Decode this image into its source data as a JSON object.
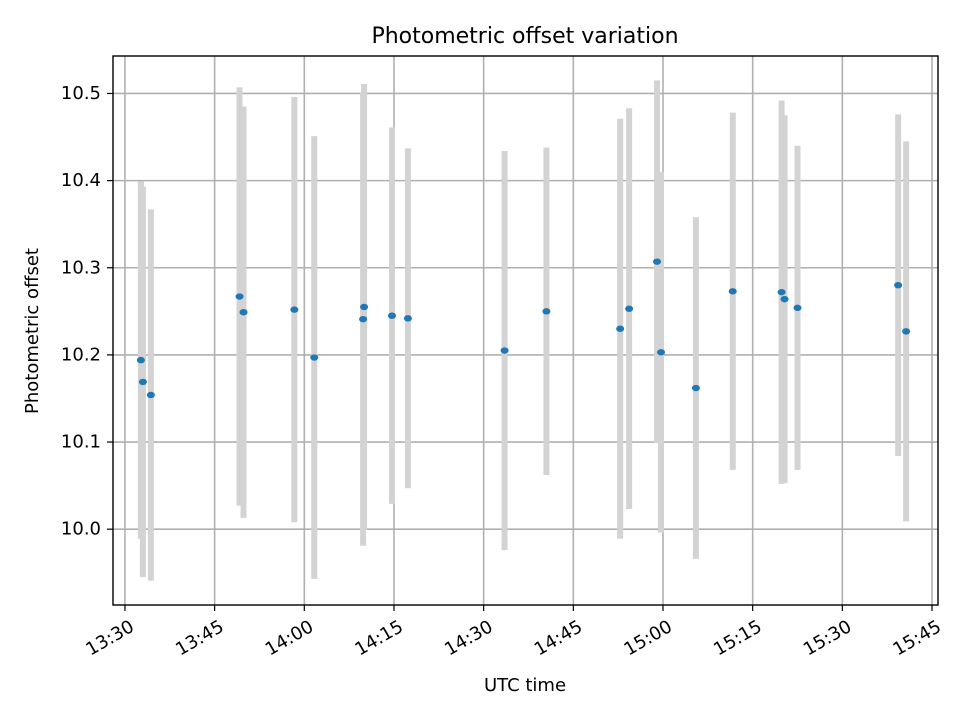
{
  "chart_data": {
    "type": "scatter",
    "title": "Photometric offset variation",
    "xlabel": "UTC time",
    "ylabel": "Photometric offset",
    "x_unit": "UTC HH:MM",
    "xlim": [
      "13:28",
      "15:46"
    ],
    "ylim": [
      9.913,
      10.543
    ],
    "x_ticks": [
      "13:30",
      "13:45",
      "14:00",
      "14:15",
      "14:30",
      "14:45",
      "15:00",
      "15:15",
      "15:30",
      "15:45"
    ],
    "y_ticks": [
      10.0,
      10.1,
      10.2,
      10.3,
      10.4,
      10.5
    ],
    "grid": true,
    "marker_color": "#1f77b4",
    "errorbar_color": "#d3d3d3",
    "points": [
      {
        "t": "13:32:40",
        "y": 10.194,
        "err": 0.205
      },
      {
        "t": "13:33:00",
        "y": 10.169,
        "err": 0.224
      },
      {
        "t": "13:34:20",
        "y": 10.154,
        "err": 0.213
      },
      {
        "t": "13:49:10",
        "y": 10.267,
        "err": 0.24
      },
      {
        "t": "13:49:50",
        "y": 10.249,
        "err": 0.236
      },
      {
        "t": "13:58:20",
        "y": 10.252,
        "err": 0.244
      },
      {
        "t": "14:01:40",
        "y": 10.197,
        "err": 0.254
      },
      {
        "t": "14:09:50",
        "y": 10.241,
        "err": 0.26
      },
      {
        "t": "14:10:00",
        "y": 10.255,
        "err": 0.256
      },
      {
        "t": "14:14:40",
        "y": 10.245,
        "err": 0.216
      },
      {
        "t": "14:17:20",
        "y": 10.242,
        "err": 0.195
      },
      {
        "t": "14:33:30",
        "y": 10.205,
        "err": 0.229
      },
      {
        "t": "14:40:30",
        "y": 10.25,
        "err": 0.188
      },
      {
        "t": "14:52:50",
        "y": 10.23,
        "err": 0.241
      },
      {
        "t": "14:54:20",
        "y": 10.253,
        "err": 0.23
      },
      {
        "t": "14:59:00",
        "y": 10.307,
        "err": 0.208
      },
      {
        "t": "14:59:40",
        "y": 10.203,
        "err": 0.207
      },
      {
        "t": "15:05:30",
        "y": 10.162,
        "err": 0.196
      },
      {
        "t": "15:11:40",
        "y": 10.273,
        "err": 0.205
      },
      {
        "t": "15:19:50",
        "y": 10.272,
        "err": 0.22
      },
      {
        "t": "15:20:20",
        "y": 10.264,
        "err": 0.211
      },
      {
        "t": "15:22:30",
        "y": 10.254,
        "err": 0.186
      },
      {
        "t": "15:39:20",
        "y": 10.28,
        "err": 0.196
      },
      {
        "t": "15:40:40",
        "y": 10.227,
        "err": 0.218
      }
    ]
  }
}
